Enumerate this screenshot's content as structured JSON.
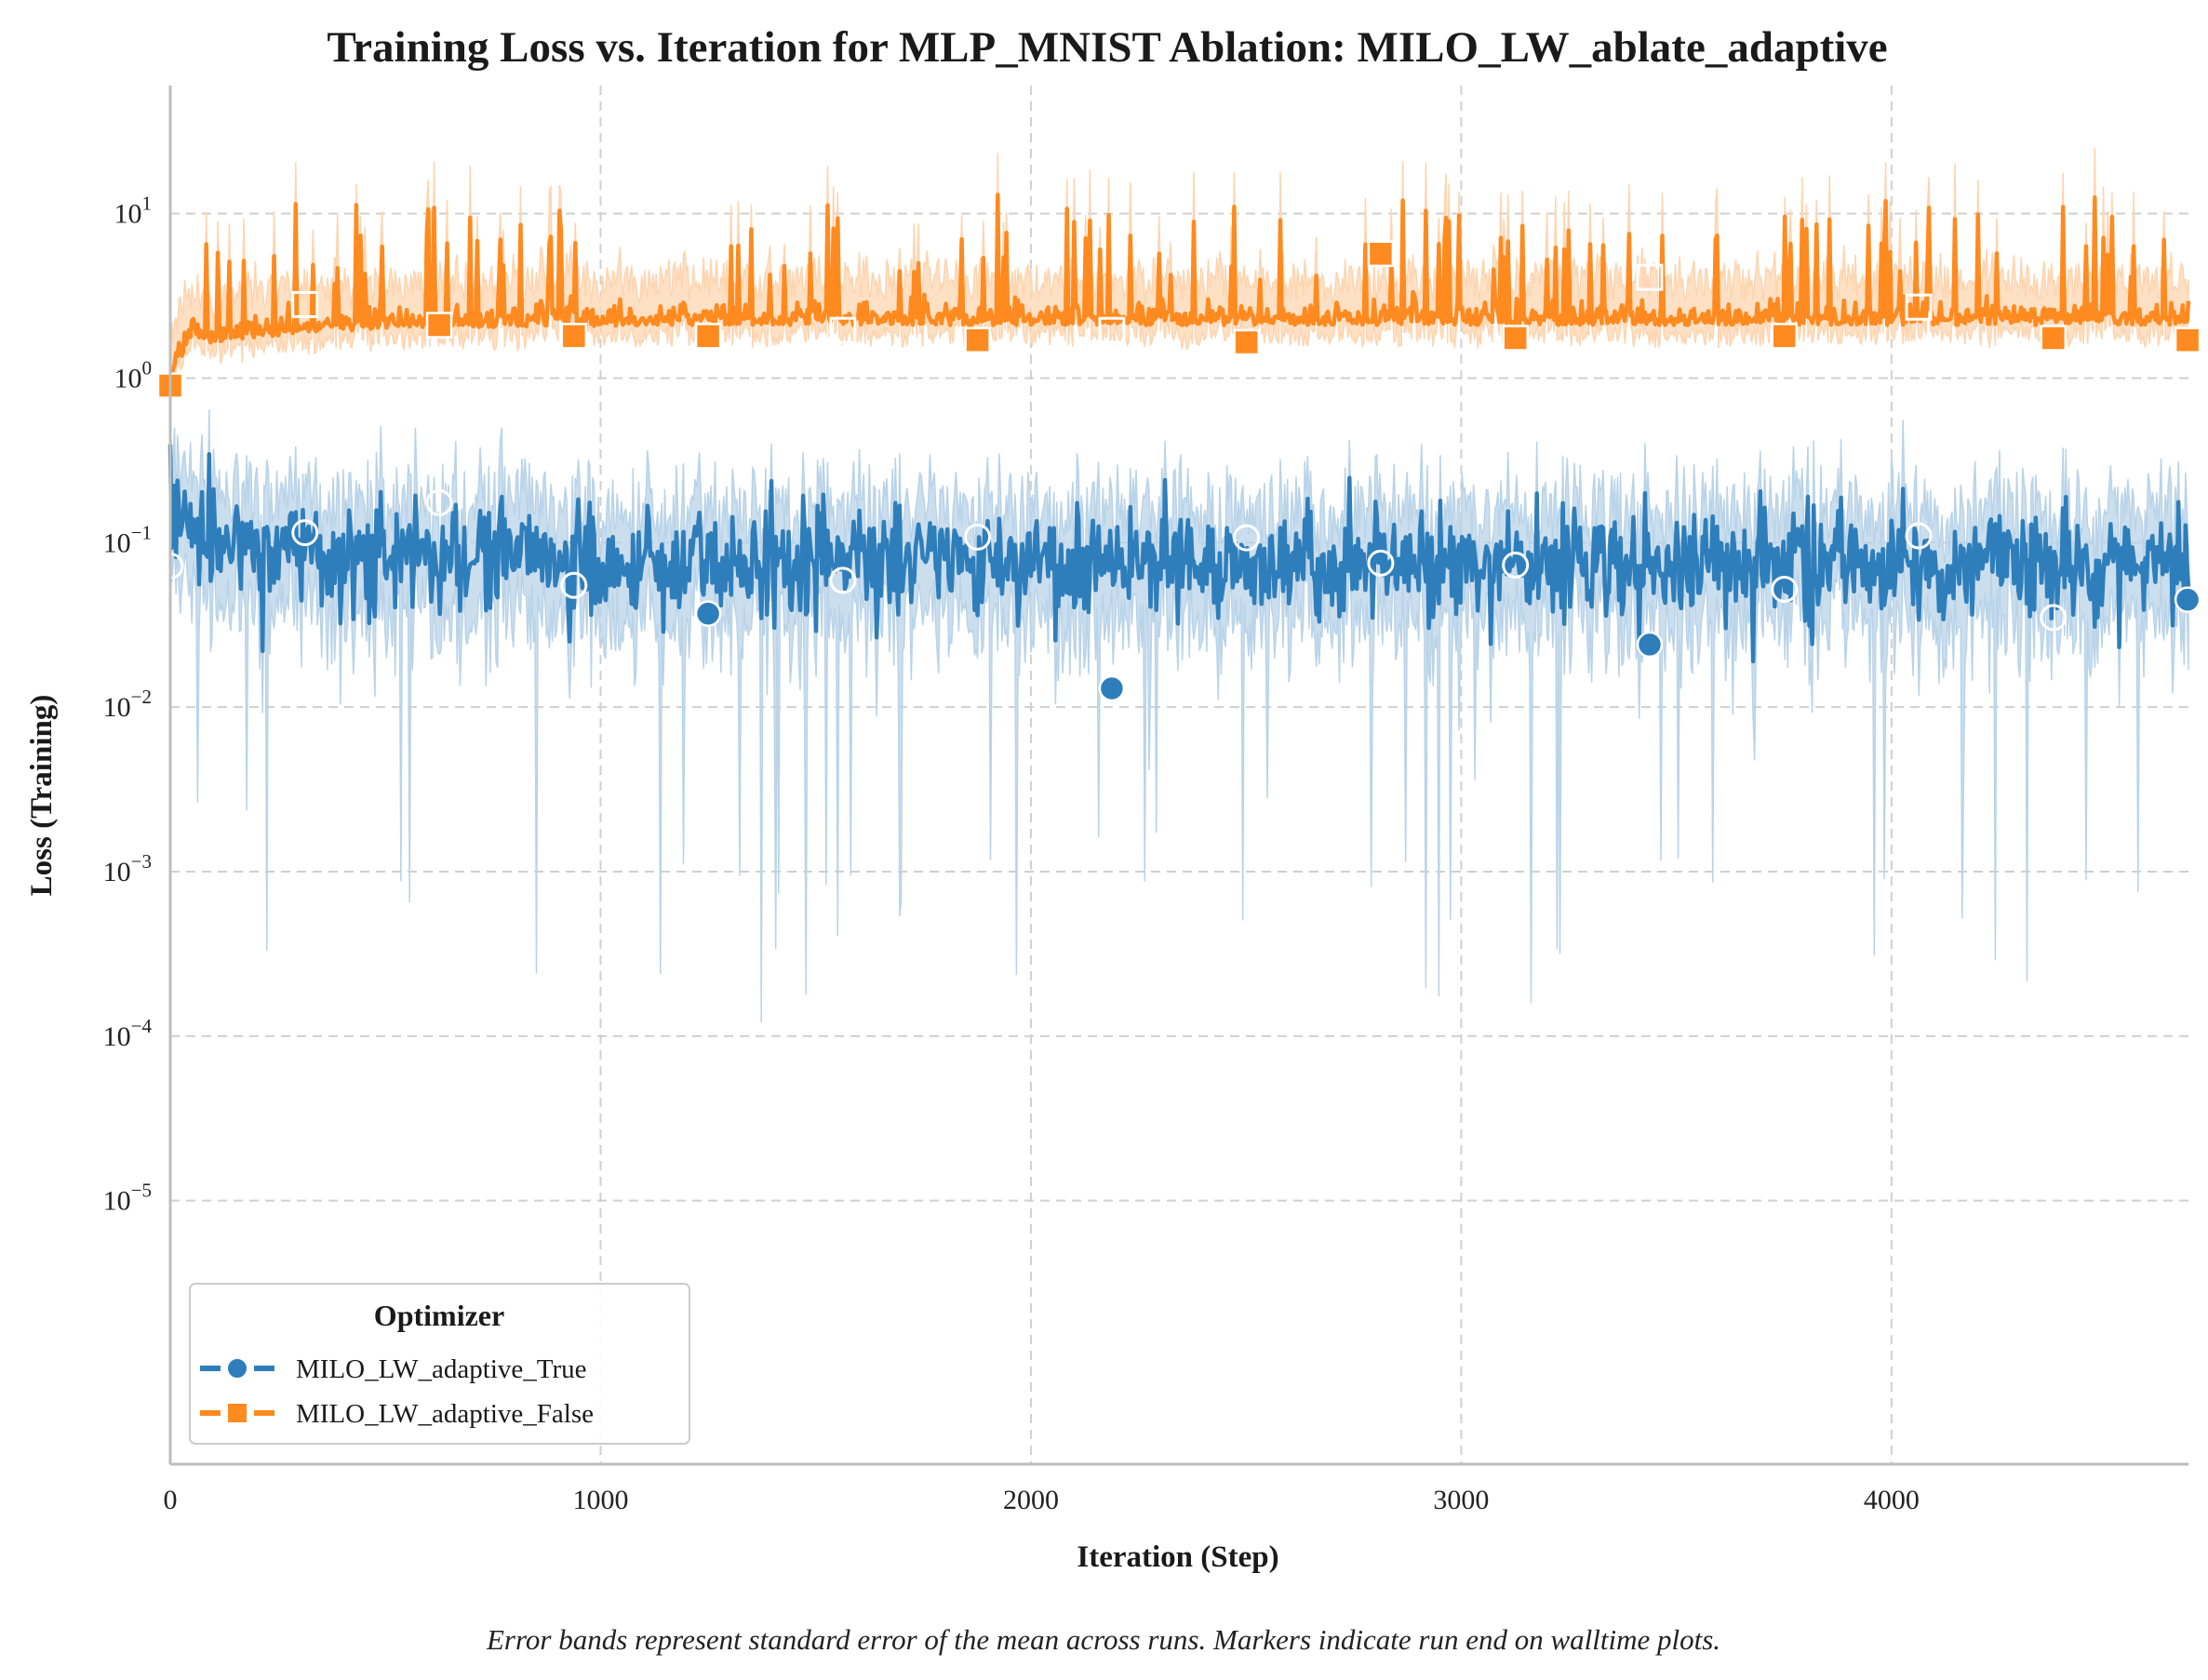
{
  "chart_data": {
    "type": "line",
    "title": "Training Loss vs. Iteration for MLP_MNIST Ablation: MILO_LW_ablate_adaptive",
    "xlabel": "Iteration (Step)",
    "ylabel": "Loss (Training)",
    "xlim": [
      0,
      4690
    ],
    "ylim": [
      2.5e-07,
      60
    ],
    "yscale": "log",
    "x_ticks": [
      0,
      1000,
      2000,
      3000,
      4000
    ],
    "x_tick_labels": [
      "0",
      "1000",
      "2000",
      "3000",
      "4000"
    ],
    "y_ticks": [
      1e-05,
      0.0001,
      0.001,
      0.01,
      0.1,
      1,
      10
    ],
    "y_tick_labels": [
      {
        "base": "10",
        "exp": "−5"
      },
      {
        "base": "10",
        "exp": "−4"
      },
      {
        "base": "10",
        "exp": "−3"
      },
      {
        "base": "10",
        "exp": "−2"
      },
      {
        "base": "10",
        "exp": "−1"
      },
      {
        "base": "10",
        "exp": "0"
      },
      {
        "base": "10",
        "exp": "1"
      }
    ],
    "grid": true,
    "legend": {
      "title": "Optimizer",
      "placement": "lower-left"
    },
    "caption": "Error bands represent standard error of the mean across runs. Markers indicate run end on walltime plots.",
    "series": [
      {
        "name": "MILO_LW_adaptive_True",
        "color": "#2e7ebb",
        "band_color": "#b9d3e8",
        "marker": "circle",
        "baseline": 0.08,
        "markers": [
          {
            "x": 0,
            "y": 0.072,
            "style": "hollow"
          },
          {
            "x": 313,
            "y": 0.115,
            "style": "hollow"
          },
          {
            "x": 625,
            "y": 0.175,
            "style": "hollow"
          },
          {
            "x": 938,
            "y": 0.055,
            "style": "hollow"
          },
          {
            "x": 1250,
            "y": 0.037,
            "style": "filled"
          },
          {
            "x": 1563,
            "y": 0.059,
            "style": "hollow"
          },
          {
            "x": 1876,
            "y": 0.108,
            "style": "hollow"
          },
          {
            "x": 2188,
            "y": 0.013,
            "style": "filled"
          },
          {
            "x": 2501,
            "y": 0.107,
            "style": "hollow"
          },
          {
            "x": 2813,
            "y": 0.075,
            "style": "hollow"
          },
          {
            "x": 3126,
            "y": 0.073,
            "style": "hollow"
          },
          {
            "x": 3438,
            "y": 0.024,
            "style": "filled"
          },
          {
            "x": 3751,
            "y": 0.052,
            "style": "hollow"
          },
          {
            "x": 4063,
            "y": 0.11,
            "style": "hollow"
          },
          {
            "x": 4376,
            "y": 0.035,
            "style": "hollow"
          },
          {
            "x": 4688,
            "y": 0.045,
            "style": "filled"
          }
        ]
      },
      {
        "name": "MILO_LW_adaptive_False",
        "color": "#ff8a1f",
        "band_color": "#fdd5b0",
        "marker": "square",
        "baseline": 2.1,
        "markers": [
          {
            "x": 0,
            "y": 0.9,
            "style": "filled"
          },
          {
            "x": 313,
            "y": 2.8,
            "style": "hollow"
          },
          {
            "x": 625,
            "y": 2.1,
            "style": "filled"
          },
          {
            "x": 938,
            "y": 1.8,
            "style": "filled"
          },
          {
            "x": 1250,
            "y": 1.8,
            "style": "filled"
          },
          {
            "x": 1563,
            "y": 1.95,
            "style": "hollow"
          },
          {
            "x": 1876,
            "y": 1.7,
            "style": "filled"
          },
          {
            "x": 2188,
            "y": 1.95,
            "style": "hollow"
          },
          {
            "x": 2501,
            "y": 1.65,
            "style": "filled"
          },
          {
            "x": 2813,
            "y": 5.7,
            "style": "filled"
          },
          {
            "x": 3126,
            "y": 1.75,
            "style": "filled"
          },
          {
            "x": 3438,
            "y": 4.1,
            "style": "hollow"
          },
          {
            "x": 3751,
            "y": 1.8,
            "style": "filled"
          },
          {
            "x": 4063,
            "y": 2.7,
            "style": "hollow"
          },
          {
            "x": 4376,
            "y": 1.75,
            "style": "filled"
          },
          {
            "x": 4688,
            "y": 1.7,
            "style": "filled"
          }
        ]
      }
    ]
  }
}
